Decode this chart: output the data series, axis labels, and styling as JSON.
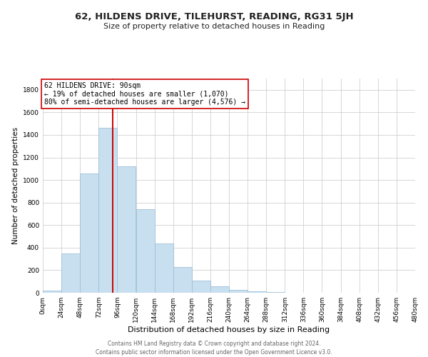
{
  "title": "62, HILDENS DRIVE, TILEHURST, READING, RG31 5JH",
  "subtitle": "Size of property relative to detached houses in Reading",
  "xlabel": "Distribution of detached houses by size in Reading",
  "ylabel": "Number of detached properties",
  "bar_color": "#c8dff0",
  "bar_edgecolor": "#a0c0d8",
  "bins": [
    0,
    24,
    48,
    72,
    96,
    120,
    144,
    168,
    192,
    216,
    240,
    264,
    288,
    312,
    336,
    360,
    384,
    408,
    432,
    456,
    480
  ],
  "counts": [
    20,
    350,
    1060,
    1460,
    1120,
    740,
    440,
    225,
    110,
    55,
    25,
    15,
    5,
    2,
    1,
    0,
    0,
    0,
    0,
    0
  ],
  "property_size": 90,
  "vline_color": "#cc0000",
  "annotation_line1": "62 HILDENS DRIVE: 90sqm",
  "annotation_line2": "← 19% of detached houses are smaller (1,070)",
  "annotation_line3": "80% of semi-detached houses are larger (4,576) →",
  "footer1": "Contains HM Land Registry data © Crown copyright and database right 2024.",
  "footer2": "Contains public sector information licensed under the Open Government Licence v3.0.",
  "xlim": [
    0,
    480
  ],
  "ylim": [
    0,
    1900
  ],
  "yticks": [
    0,
    200,
    400,
    600,
    800,
    1000,
    1200,
    1400,
    1600,
    1800
  ],
  "xtick_labels": [
    "0sqm",
    "24sqm",
    "48sqm",
    "72sqm",
    "96sqm",
    "120sqm",
    "144sqm",
    "168sqm",
    "192sqm",
    "216sqm",
    "240sqm",
    "264sqm",
    "288sqm",
    "312sqm",
    "336sqm",
    "360sqm",
    "384sqm",
    "408sqm",
    "432sqm",
    "456sqm",
    "480sqm"
  ],
  "xtick_values": [
    0,
    24,
    48,
    72,
    96,
    120,
    144,
    168,
    192,
    216,
    240,
    264,
    288,
    312,
    336,
    360,
    384,
    408,
    432,
    456,
    480
  ],
  "title_fontsize": 9.5,
  "subtitle_fontsize": 8.0,
  "xlabel_fontsize": 8.0,
  "ylabel_fontsize": 7.5,
  "tick_fontsize": 6.5,
  "footer_fontsize": 5.5
}
